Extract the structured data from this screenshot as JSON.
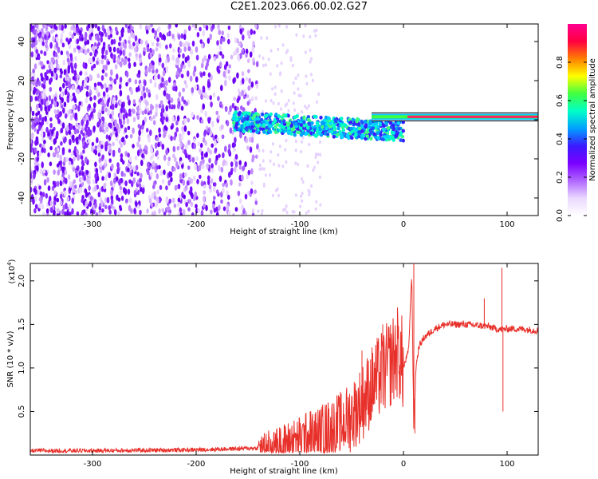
{
  "page_title": "C2E1.2023.066.00.02.G27",
  "chart_data": [
    {
      "type": "heatmap",
      "xlabel": "Height of straight line (km)",
      "ylabel": "Frequency (Hz)",
      "xlim": [
        -360,
        130
      ],
      "ylim": [
        -49,
        49
      ],
      "xticks": [
        "-300",
        "-200",
        "-100",
        "0",
        "100"
      ],
      "xtick_values": [
        -300,
        -200,
        -100,
        0,
        100
      ],
      "yticks": [
        "40",
        "20",
        "0",
        "-20",
        "-40"
      ],
      "ytick_values": [
        40,
        20,
        0,
        -20,
        -40
      ],
      "colorbar": {
        "label": "Normalized spectral amplitude",
        "range": [
          0,
          1
        ],
        "ticks": [
          "0.0",
          "0.2",
          "0.4",
          "0.6",
          "0.8"
        ],
        "tick_values": [
          0.0,
          0.2,
          0.4,
          0.6,
          0.8
        ],
        "colormap": [
          "#ffffff",
          "#ead8ff",
          "#b066ff",
          "#7a00ff",
          "#3a1cff",
          "#00a0ff",
          "#00ffc8",
          "#40ff40",
          "#ffff00",
          "#ff8000",
          "#ff0040",
          "#ff0090"
        ]
      },
      "signal_line": {
        "x_from": 0,
        "x_to": 130,
        "y": 1.5
      },
      "grid": false
    },
    {
      "type": "line",
      "xlabel": "Height of straight line (km)",
      "ylabel": "SNR (10 * v/v)",
      "y_multiplier_label": "(x10",
      "y_multiplier_exp": "4",
      "y_multiplier_close": ")",
      "xlim": [
        -360,
        130
      ],
      "ylim": [
        0,
        2.2
      ],
      "xticks": [
        "-300",
        "-200",
        "-100",
        "0",
        "100"
      ],
      "xtick_values": [
        -300,
        -200,
        -100,
        0,
        100
      ],
      "yticks": [
        "2.0",
        "1.5",
        "1.0",
        "0.5"
      ],
      "ytick_values": [
        2.0,
        1.5,
        1.0,
        0.5
      ],
      "series": [
        {
          "color": "#e8302a",
          "x": [
            -360,
            -300,
            -200,
            -140,
            -120,
            -100,
            -90,
            -80,
            -70,
            -60,
            -50,
            -40,
            -30,
            -20,
            -10,
            -5,
            0,
            5,
            8,
            10,
            12,
            15,
            20,
            30,
            40,
            60,
            80,
            90,
            95,
            100,
            110,
            130
          ],
          "y": [
            0.05,
            0.05,
            0.06,
            0.08,
            0.12,
            0.18,
            0.22,
            0.25,
            0.3,
            0.35,
            0.45,
            0.6,
            0.8,
            0.95,
            1.1,
            1.2,
            1.0,
            1.2,
            2.1,
            0.3,
            1.0,
            1.25,
            1.35,
            1.45,
            1.5,
            1.5,
            1.48,
            1.45,
            1.44,
            1.45,
            1.45,
            1.43
          ]
        }
      ],
      "spikes": [
        {
          "x": 10,
          "y": 2.2
        },
        {
          "x": 11,
          "y": 0.25
        },
        {
          "x": 95,
          "y": 2.15
        },
        {
          "x": 96,
          "y": 0.5
        },
        {
          "x": -20,
          "y": 1.5
        },
        {
          "x": -40,
          "y": 1.2
        },
        {
          "x": -90,
          "y": 0.5
        },
        {
          "x": 78,
          "y": 1.8
        }
      ],
      "grid": false
    }
  ]
}
